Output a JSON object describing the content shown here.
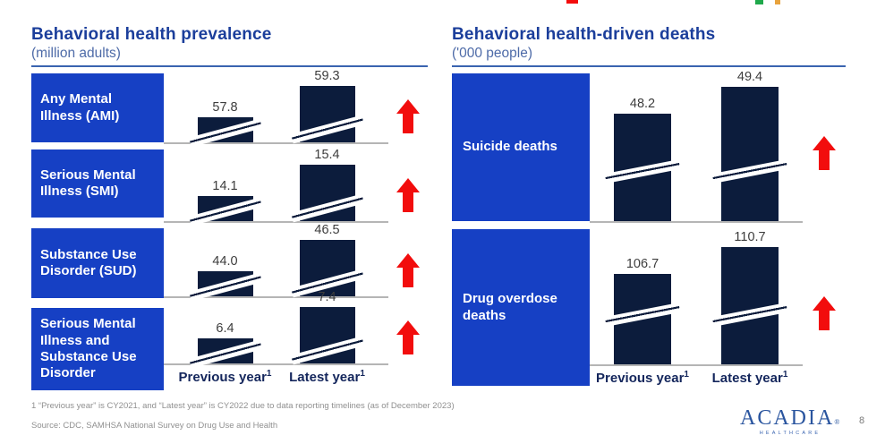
{
  "chart_data": [
    {
      "type": "bar",
      "title": "Behavioral health prevalence",
      "subtitle": "(million adults)",
      "categories": [
        "Previous year",
        "Latest year"
      ],
      "footnote_marker": "1",
      "axis_break": true,
      "legend_position": "none",
      "bar_color": "#0c1c3c",
      "series": [
        {
          "name": "Any Mental Illness (AMI)",
          "values": [
            57.8,
            59.3
          ],
          "display": [
            "57.8",
            "59.3"
          ],
          "trend": "up"
        },
        {
          "name": "Serious Mental Illness (SMI)",
          "values": [
            14.1,
            15.4
          ],
          "display": [
            "14.1",
            "15.4"
          ],
          "trend": "up"
        },
        {
          "name": "Substance Use Disorder (SUD)",
          "values": [
            44.0,
            46.5
          ],
          "display": [
            "44.0",
            "46.5"
          ],
          "trend": "up"
        },
        {
          "name": "Serious Mental Illness and Substance Use Disorder",
          "values": [
            6.4,
            7.4
          ],
          "display": [
            "6.4",
            "7.4"
          ],
          "trend": "up"
        }
      ]
    },
    {
      "type": "bar",
      "title": "Behavioral health-driven deaths",
      "subtitle": "('000 people)",
      "categories": [
        "Previous year",
        "Latest year"
      ],
      "footnote_marker": "1",
      "axis_break": true,
      "legend_position": "none",
      "bar_color": "#0c1c3c",
      "series": [
        {
          "name": "Suicide deaths",
          "values": [
            48.2,
            49.4
          ],
          "display": [
            "48.2",
            "49.4"
          ],
          "trend": "up"
        },
        {
          "name": "Drug overdose deaths",
          "values": [
            106.7,
            110.7
          ],
          "display": [
            "106.7",
            "110.7"
          ],
          "trend": "up"
        }
      ]
    }
  ],
  "footer": {
    "footnote": "1 “Previous year” is CY2021, and “Latest year” is CY2022 due to data reporting timelines (as of December 2023)",
    "source": "Source: CDC, SAMHSA National Survey on Drug Use and Health",
    "page_number": "8"
  },
  "logo": {
    "wordmark": "ACADIA",
    "mark": "®",
    "subtext": "HEALTHCARE"
  },
  "colors": {
    "label_box_blue": "#1640c4",
    "bar_navy": "#0c1c3c",
    "title_blue": "#1b3e9b",
    "arrow_red": "#f20d0d",
    "baseline_gray": "#b5b5b5"
  }
}
